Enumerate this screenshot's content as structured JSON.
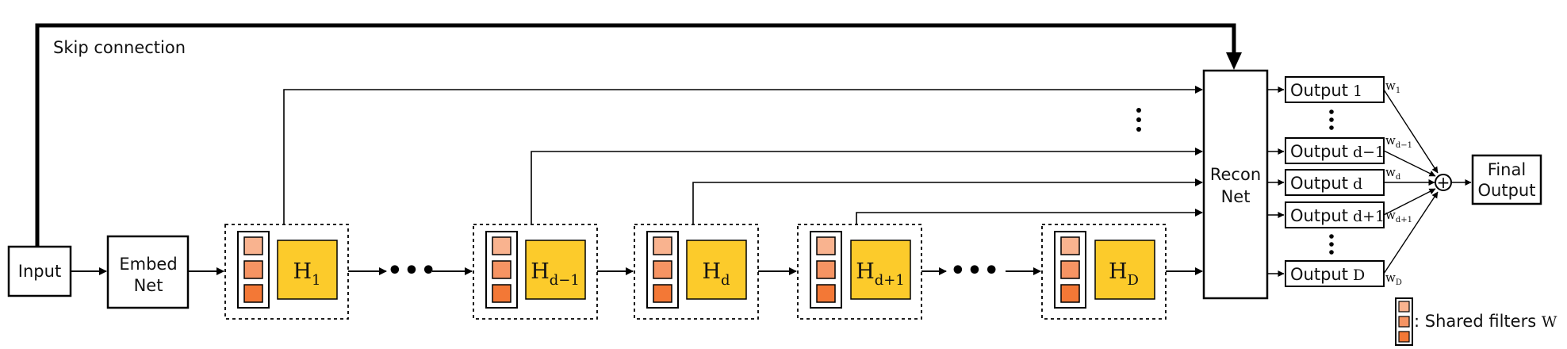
{
  "diagram": {
    "skip_label": "Skip connection",
    "input_label": "Input",
    "embed_label": [
      "Embed",
      "Net"
    ],
    "recon_label": [
      "Recon",
      "Net"
    ],
    "final_label": [
      "Final",
      "Output"
    ],
    "hidden_states": [
      {
        "base": "H",
        "sub": "1"
      },
      {
        "base": "H",
        "sub": "d−1"
      },
      {
        "base": "H",
        "sub": "d"
      },
      {
        "base": "H",
        "sub": "d+1"
      },
      {
        "base": "H",
        "sub": "D"
      }
    ],
    "outputs": [
      {
        "word": "Output",
        "idx": "1",
        "weight": "w",
        "wsub": "1"
      },
      {
        "word": "Output",
        "idx": "d−1",
        "weight": "w",
        "wsub": "d−1"
      },
      {
        "word": "Output",
        "idx": "d",
        "weight": "w",
        "wsub": "d"
      },
      {
        "word": "Output",
        "idx": "d+1",
        "weight": "w",
        "wsub": "d+1"
      },
      {
        "word": "Output",
        "idx": "D",
        "weight": "w",
        "wsub": "D"
      }
    ],
    "ellipsis": "•••",
    "sum_symbol": "+",
    "legend": {
      "text": ": Shared filters ",
      "symbol": "W"
    },
    "colors": {
      "hidden_fill": "#FCCB2B",
      "filter_light": "#F9B38F",
      "filter_mid": "#F69463",
      "filter_dark": "#F37836",
      "line": "#000000"
    }
  }
}
